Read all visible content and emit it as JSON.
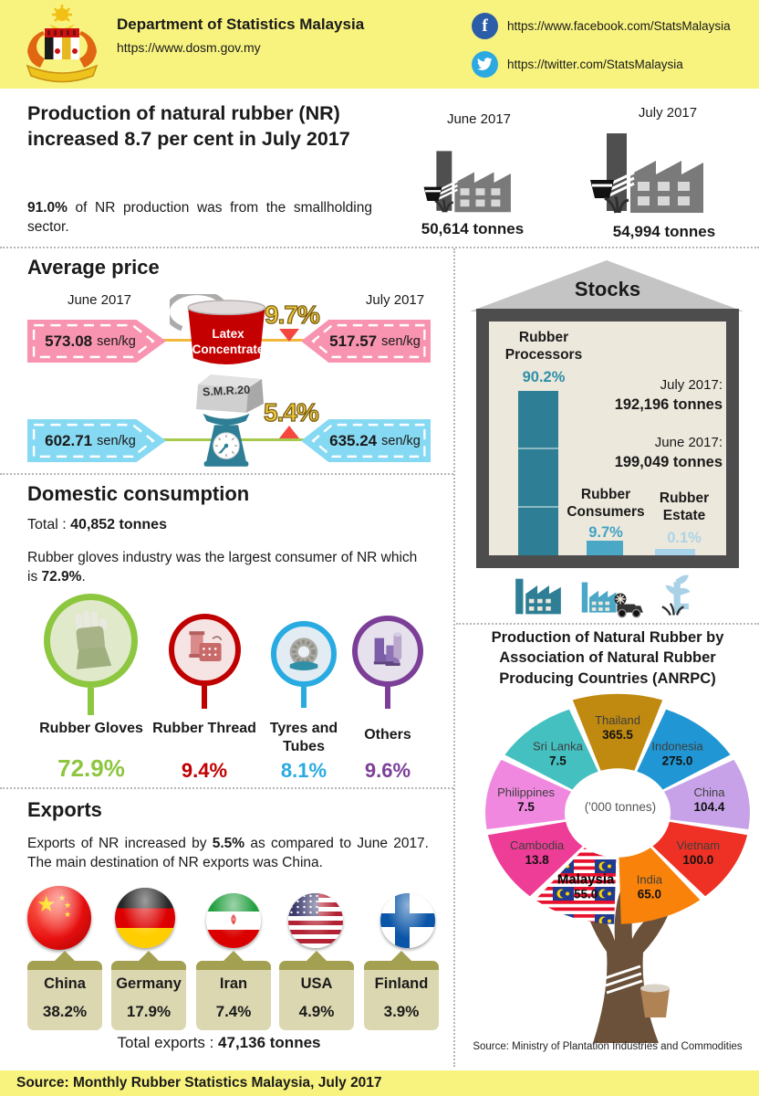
{
  "header": {
    "agency": "Department of Statistics Malaysia",
    "website": "https://www.dosm.gov.my",
    "facebook_url": "https://www.facebook.com/StatsMalaysia",
    "twitter_url": "https://twitter.com/StatsMalaysia"
  },
  "headline": {
    "title": "Production of natural rubber (NR) increased 8.7 per cent in July 2017",
    "subtitle_bold": "91.0%",
    "subtitle_rest": " of NR production was from the smallholding sector.",
    "june": {
      "label": "June 2017",
      "value": "50,614 tonnes"
    },
    "july": {
      "label": "July 2017",
      "value": "54,994 tonnes"
    }
  },
  "average_price": {
    "title": "Average price",
    "june_label": "June 2017",
    "july_label": "July 2017",
    "latex": {
      "name": "Latex Concentrate",
      "june_value": "573.08",
      "july_value": "517.57",
      "unit": "sen/kg",
      "change": "9.7%",
      "direction": "down"
    },
    "smr": {
      "name": "S.M.R.20",
      "june_value": "602.71",
      "july_value": "635.24",
      "unit": "sen/kg",
      "change": "5.4%",
      "direction": "up"
    }
  },
  "stocks": {
    "title": "Stocks",
    "july_label": "July 2017:",
    "july_value": "192,196 tonnes",
    "june_label": "June 2017:",
    "june_value": "199,049 tonnes",
    "categories": [
      {
        "name": "Rubber Processors",
        "share": "90.2%"
      },
      {
        "name": "Rubber Consumers",
        "share": "9.7%"
      },
      {
        "name": "Rubber Estate",
        "share": "0.1%"
      }
    ]
  },
  "domestic": {
    "title": "Domestic consumption",
    "total_label": "Total : ",
    "total_value": "40,852 tonnes",
    "desc_pre": "Rubber gloves industry was the largest consumer of NR which is ",
    "desc_bold": "72.9%",
    "desc_post": ".",
    "items": [
      {
        "name": "Rubber Gloves",
        "share": "72.9%"
      },
      {
        "name": "Rubber Thread",
        "share": "9.4%"
      },
      {
        "name": "Tyres and Tubes",
        "share": "8.1%"
      },
      {
        "name": "Others",
        "share": "9.6%"
      }
    ]
  },
  "exports": {
    "title": "Exports",
    "desc_pre": "Exports of NR increased by ",
    "desc_bold": "5.5%",
    "desc_post": " as compared to June 2017. The main destination of NR exports was China.",
    "countries": [
      {
        "name": "China",
        "share": "38.2%"
      },
      {
        "name": "Germany",
        "share": "17.9%"
      },
      {
        "name": "Iran",
        "share": "7.4%"
      },
      {
        "name": "USA",
        "share": "4.9%"
      },
      {
        "name": "Finland",
        "share": "3.9%"
      }
    ],
    "total_label": "Total exports : ",
    "total_value": "47,136 tonnes"
  },
  "chart_data": {
    "type": "pie",
    "title": "Production of Natural Rubber by Association of Natural Rubber Producing Countries (ANRPC)",
    "unit_label": "('000 tonnes)",
    "series": [
      {
        "name": "Thailand",
        "value": 365.5,
        "color": "#C08A10"
      },
      {
        "name": "Indonesia",
        "value": 275.0,
        "color": "#2097D4"
      },
      {
        "name": "China",
        "value": 104.4,
        "color": "#C7A2E8"
      },
      {
        "name": "Vietnam",
        "value": 100.0,
        "color": "#EE3124"
      },
      {
        "name": "India",
        "value": 65.0,
        "color": "#F9820A"
      },
      {
        "name": "Malaysia",
        "value": 55.0,
        "color": "flag-pattern"
      },
      {
        "name": "Cambodia",
        "value": 13.8,
        "color": "#EE3D96"
      },
      {
        "name": "Philippines",
        "value": 7.5,
        "color": "#F088DF"
      },
      {
        "name": "Sri Lanka",
        "value": 7.5,
        "color": "#45C0C0"
      }
    ],
    "source": "Source: Ministry of Plantation Industries and Commodities",
    "layout": "equal-angle donut, labels inside slices, Thailand slice enlarged, legend none"
  },
  "footer": {
    "source": "Source:  Monthly Rubber Statistics Malaysia, July 2017"
  },
  "colors": {
    "header_yellow": "#F8F37E",
    "pink_pennant": "#F893B0",
    "blue_pennant": "#86D9F2",
    "latex_red": "#C40000",
    "scale_teal": "#2E7F96",
    "change_gold": "#EAC93D",
    "change_triangle_red": "#F4473E",
    "stocks_bar_dark": "#2E7F96",
    "stocks_bar_mid": "#4AA7C6",
    "stocks_bar_light": "#A8D3E8",
    "gloves_green": "#8DC63F",
    "thread_red": "#C00000",
    "tyres_blue": "#29ABE2",
    "others_purple": "#7C3F98",
    "export_card": "#DBD7B0",
    "export_card_bar": "#A3A051"
  }
}
